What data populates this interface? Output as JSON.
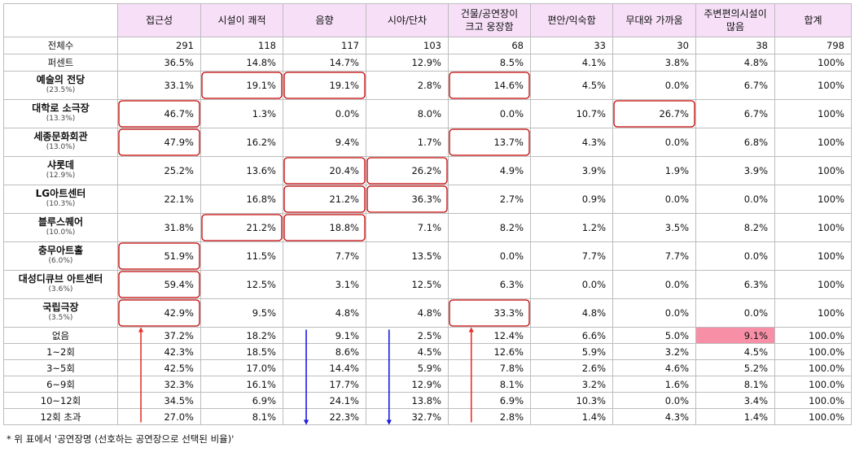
{
  "table": {
    "headers": [
      [
        "접근성"
      ],
      [
        "시설이 쾌적"
      ],
      [
        "음향"
      ],
      [
        "시야/단차"
      ],
      [
        "건물/공연장이",
        "크고 웅장함"
      ],
      [
        "편안/익숙함"
      ],
      [
        "무대와 가까움"
      ],
      [
        "주변편의시설이",
        "많음"
      ],
      [
        "합계"
      ]
    ],
    "summary_rows": [
      {
        "label": "전체수",
        "values": [
          "291",
          "118",
          "117",
          "103",
          "68",
          "33",
          "30",
          "38",
          "798"
        ]
      },
      {
        "label": "퍼센트",
        "values": [
          "36.5%",
          "14.8%",
          "14.7%",
          "12.9%",
          "8.5%",
          "4.1%",
          "3.8%",
          "4.8%",
          "100%"
        ]
      }
    ],
    "venue_rows": [
      {
        "name": "예술의 전당",
        "share": "(23.5%)",
        "values": [
          "33.1%",
          "19.1%",
          "19.1%",
          "2.8%",
          "14.6%",
          "4.5%",
          "0.0%",
          "6.7%",
          "100%"
        ]
      },
      {
        "name": "대학로 소극장",
        "share": "(13.3%)",
        "values": [
          "46.7%",
          "1.3%",
          "0.0%",
          "8.0%",
          "0.0%",
          "10.7%",
          "26.7%",
          "6.7%",
          "100%"
        ]
      },
      {
        "name": "세종문화회관",
        "share": "(13.0%)",
        "values": [
          "47.9%",
          "16.2%",
          "9.4%",
          "1.7%",
          "13.7%",
          "4.3%",
          "0.0%",
          "6.8%",
          "100%"
        ]
      },
      {
        "name": "샤롯데",
        "share": "(12.9%)",
        "values": [
          "25.2%",
          "13.6%",
          "20.4%",
          "26.2%",
          "4.9%",
          "3.9%",
          "1.9%",
          "3.9%",
          "100%"
        ]
      },
      {
        "name": "LG아트센터",
        "share": "(10.3%)",
        "values": [
          "22.1%",
          "16.8%",
          "21.2%",
          "36.3%",
          "2.7%",
          "0.9%",
          "0.0%",
          "0.0%",
          "100%"
        ]
      },
      {
        "name": "블루스퀘어",
        "share": "(10.0%)",
        "values": [
          "31.8%",
          "21.2%",
          "18.8%",
          "7.1%",
          "8.2%",
          "1.2%",
          "3.5%",
          "8.2%",
          "100%"
        ]
      },
      {
        "name": "충무아트홀",
        "share": "(6.0%)",
        "values": [
          "51.9%",
          "11.5%",
          "7.7%",
          "13.5%",
          "0.0%",
          "7.7%",
          "7.7%",
          "0.0%",
          "100%"
        ]
      },
      {
        "name": "대성디큐브 아트센터",
        "share": "(3.6%)",
        "values": [
          "59.4%",
          "12.5%",
          "3.1%",
          "12.5%",
          "6.3%",
          "0.0%",
          "0.0%",
          "6.3%",
          "100%"
        ]
      },
      {
        "name": "국립극장",
        "share": "(3.5%)",
        "values": [
          "42.9%",
          "9.5%",
          "4.8%",
          "4.8%",
          "33.3%",
          "4.8%",
          "0.0%",
          "0.0%",
          "100%"
        ]
      }
    ],
    "frequency_rows": [
      {
        "label": "없음",
        "values": [
          "37.2%",
          "18.2%",
          "9.1%",
          "2.5%",
          "12.4%",
          "6.6%",
          "5.0%",
          "9.1%",
          "100.0%"
        ]
      },
      {
        "label": "1~2회",
        "values": [
          "42.3%",
          "18.5%",
          "8.6%",
          "4.5%",
          "12.6%",
          "5.9%",
          "3.2%",
          "4.5%",
          "100.0%"
        ]
      },
      {
        "label": "3~5회",
        "values": [
          "42.5%",
          "17.0%",
          "14.4%",
          "5.9%",
          "7.8%",
          "2.6%",
          "4.6%",
          "5.2%",
          "100.0%"
        ]
      },
      {
        "label": "6~9회",
        "values": [
          "32.3%",
          "16.1%",
          "17.7%",
          "12.9%",
          "8.1%",
          "3.2%",
          "1.6%",
          "8.1%",
          "100.0%"
        ]
      },
      {
        "label": "10~12회",
        "values": [
          "34.5%",
          "6.9%",
          "24.1%",
          "13.8%",
          "6.9%",
          "10.3%",
          "0.0%",
          "3.4%",
          "100.0%"
        ]
      },
      {
        "label": "12회 초과",
        "values": [
          "27.0%",
          "8.1%",
          "22.3%",
          "32.7%",
          "2.8%",
          "1.4%",
          "4.3%",
          "1.4%",
          "100.0%"
        ]
      }
    ]
  },
  "footnote": "* 위 표에서 '공연장명 (선호하는 공연장으로 선택된 비율)'",
  "colors": {
    "header_bg": "#f6dff7",
    "highlight_border": "#c00000",
    "highlight_fill": "#f78fa7",
    "arrow_up": "#e8322f",
    "arrow_down": "#1b1be0"
  },
  "highlights": [
    {
      "section": "venue_rows",
      "row": 0,
      "col": 1
    },
    {
      "section": "venue_rows",
      "row": 0,
      "col": 2
    },
    {
      "section": "venue_rows",
      "row": 0,
      "col": 4
    },
    {
      "section": "venue_rows",
      "row": 1,
      "col": 0
    },
    {
      "section": "venue_rows",
      "row": 1,
      "col": 6
    },
    {
      "section": "venue_rows",
      "row": 2,
      "col": 0
    },
    {
      "section": "venue_rows",
      "row": 2,
      "col": 4
    },
    {
      "section": "venue_rows",
      "row": 3,
      "col": 2
    },
    {
      "section": "venue_rows",
      "row": 3,
      "col": 3
    },
    {
      "section": "venue_rows",
      "row": 4,
      "col": 2
    },
    {
      "section": "venue_rows",
      "row": 4,
      "col": 3
    },
    {
      "section": "venue_rows",
      "row": 5,
      "col": 1
    },
    {
      "section": "venue_rows",
      "row": 5,
      "col": 2
    },
    {
      "section": "venue_rows",
      "row": 6,
      "col": 0
    },
    {
      "section": "venue_rows",
      "row": 7,
      "col": 0
    },
    {
      "section": "venue_rows",
      "row": 8,
      "col": 0
    },
    {
      "section": "venue_rows",
      "row": 8,
      "col": 4
    }
  ],
  "filled_cells": [
    {
      "section": "frequency_rows",
      "row": 0,
      "col": 7
    }
  ],
  "trend_arrows": [
    {
      "col": 0,
      "direction": "up"
    },
    {
      "col": 2,
      "direction": "down"
    },
    {
      "col": 3,
      "direction": "down"
    },
    {
      "col": 4,
      "direction": "up"
    }
  ]
}
